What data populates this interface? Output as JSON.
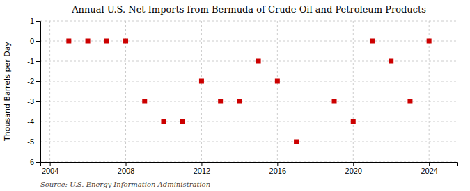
{
  "chart_data": {
    "type": "scatter",
    "title": "Annual U.S. Net Imports from Bermuda of Crude Oil and Petroleum Products",
    "y_label": "Thousand Barrels per Day",
    "annotations": [
      "Source: U.S. Energy Information Administration"
    ],
    "x": [
      2005,
      2006,
      2007,
      2008,
      2009,
      2010,
      2011,
      2012,
      2013,
      2014,
      2015,
      2016,
      2017,
      2019,
      2020,
      2021,
      2022,
      2023,
      2024
    ],
    "values": [
      0,
      0,
      0,
      0,
      -3,
      -4,
      -4,
      -2,
      -3,
      -3,
      -1,
      -2,
      -5,
      -3,
      -4,
      0,
      -1,
      -3,
      0
    ],
    "color": "#cc0000",
    "marker": "square",
    "xlim": [
      2003.5,
      2025.5
    ],
    "xticks": [
      2004,
      2008,
      2012,
      2016,
      2020,
      2024
    ],
    "ylim": [
      -6,
      1
    ],
    "yticks": [
      1,
      0,
      -1,
      -2,
      -3,
      -4,
      -5,
      -6
    ],
    "grid": true
  }
}
